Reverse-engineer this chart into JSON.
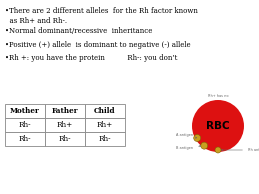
{
  "bg_color": "#ffffff",
  "bullets": [
    "•There are 2 different alleles  for the Rh factor known\n  as Rh+ and Rh-.",
    "•Normal dominant/recessive  inheritance",
    "•Positive (+) allele  is dominant to negative (-) allele",
    "•Rh +: you have the protein          Rh-: you don’t"
  ],
  "table_headers": [
    "Mother",
    "Father",
    "Child"
  ],
  "table_rows": [
    [
      "Rh-",
      "Rh+",
      "Rh+"
    ],
    [
      "Rh-",
      "Rh-",
      "Rh-"
    ]
  ],
  "rbc_color": "#dd1111",
  "rbc_label": "RBC",
  "rbc_label_color": "#000000",
  "antigen_color": "#c8a020",
  "small_text_color": "#666666",
  "rbc_small_top_text": "Rh+ has no",
  "rbc_label1": "A antigen",
  "rbc_label2": "B antigen",
  "rbc_label3": "Rh antigen"
}
